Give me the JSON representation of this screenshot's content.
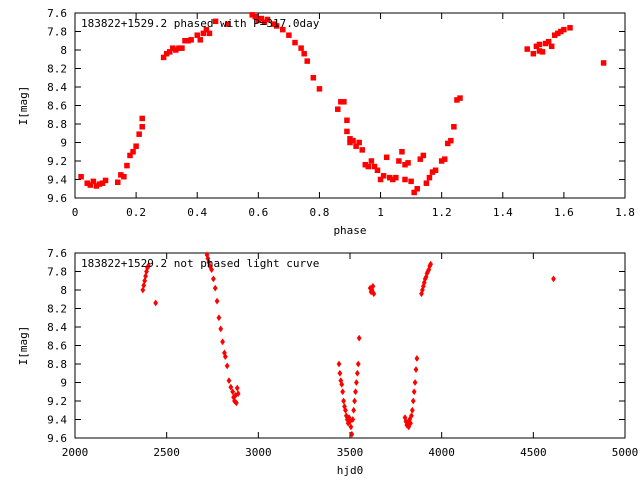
{
  "chart_data": [
    {
      "type": "scatter",
      "title": "183822+1529.2 phased with P=317.0day",
      "xlabel": "phase",
      "ylabel": "I[mag]",
      "xlim": [
        0,
        1.8
      ],
      "ylim": [
        9.6,
        7.6
      ],
      "y_inverted": true,
      "xticks": [
        "0",
        "0.2",
        "0.4",
        "0.6",
        "0.8",
        "1",
        "1.2",
        "1.4",
        "1.6",
        "1.8"
      ],
      "yticks": [
        "7.6",
        "7.8",
        "8",
        "8.2",
        "8.4",
        "8.6",
        "8.8",
        "9",
        "9.2",
        "9.4",
        "9.6"
      ],
      "grid": false,
      "marker_color": "#ff0000",
      "points": [
        [
          0.02,
          9.37
        ],
        [
          0.04,
          9.44
        ],
        [
          0.05,
          9.46
        ],
        [
          0.06,
          9.42
        ],
        [
          0.07,
          9.47
        ],
        [
          0.08,
          9.45
        ],
        [
          0.09,
          9.44
        ],
        [
          0.1,
          9.41
        ],
        [
          0.14,
          9.43
        ],
        [
          0.15,
          9.35
        ],
        [
          0.16,
          9.37
        ],
        [
          0.17,
          9.25
        ],
        [
          0.18,
          9.14
        ],
        [
          0.19,
          9.1
        ],
        [
          0.2,
          9.04
        ],
        [
          0.21,
          8.91
        ],
        [
          0.22,
          8.83
        ],
        [
          0.22,
          8.74
        ],
        [
          0.29,
          8.08
        ],
        [
          0.3,
          8.04
        ],
        [
          0.31,
          8.02
        ],
        [
          0.32,
          7.98
        ],
        [
          0.33,
          8.0
        ],
        [
          0.34,
          7.98
        ],
        [
          0.35,
          7.98
        ],
        [
          0.36,
          7.9
        ],
        [
          0.37,
          7.9
        ],
        [
          0.38,
          7.89
        ],
        [
          0.4,
          7.84
        ],
        [
          0.41,
          7.89
        ],
        [
          0.42,
          7.82
        ],
        [
          0.43,
          7.78
        ],
        [
          0.44,
          7.82
        ],
        [
          0.46,
          7.69
        ],
        [
          0.5,
          7.72
        ],
        [
          0.58,
          7.62
        ],
        [
          0.59,
          7.64
        ],
        [
          0.6,
          7.68
        ],
        [
          0.61,
          7.66
        ],
        [
          0.62,
          7.7
        ],
        [
          0.63,
          7.67
        ],
        [
          0.65,
          7.72
        ],
        [
          0.66,
          7.74
        ],
        [
          0.68,
          7.78
        ],
        [
          0.7,
          7.84
        ],
        [
          0.72,
          7.92
        ],
        [
          0.74,
          7.98
        ],
        [
          0.75,
          8.04
        ],
        [
          0.76,
          8.12
        ],
        [
          0.78,
          8.3
        ],
        [
          0.8,
          8.42
        ],
        [
          0.86,
          8.64
        ],
        [
          0.87,
          8.56
        ],
        [
          0.88,
          8.56
        ],
        [
          0.89,
          8.76
        ],
        [
          0.89,
          8.88
        ],
        [
          0.9,
          8.96
        ],
        [
          0.9,
          9.0
        ],
        [
          0.91,
          8.98
        ],
        [
          0.92,
          9.04
        ],
        [
          0.93,
          9.0
        ],
        [
          0.94,
          9.08
        ],
        [
          0.95,
          9.24
        ],
        [
          0.96,
          9.26
        ],
        [
          0.97,
          9.2
        ],
        [
          0.98,
          9.26
        ],
        [
          0.99,
          9.3
        ],
        [
          1.0,
          9.4
        ],
        [
          1.01,
          9.36
        ],
        [
          1.02,
          9.16
        ],
        [
          1.03,
          9.38
        ],
        [
          1.04,
          9.4
        ],
        [
          1.05,
          9.38
        ],
        [
          1.06,
          9.2
        ],
        [
          1.07,
          9.1
        ],
        [
          1.08,
          9.24
        ],
        [
          1.08,
          9.4
        ],
        [
          1.09,
          9.22
        ],
        [
          1.1,
          9.42
        ],
        [
          1.11,
          9.54
        ],
        [
          1.12,
          9.5
        ],
        [
          1.13,
          9.18
        ],
        [
          1.14,
          9.14
        ],
        [
          1.15,
          9.44
        ],
        [
          1.16,
          9.38
        ],
        [
          1.17,
          9.32
        ],
        [
          1.18,
          9.3
        ],
        [
          1.2,
          9.2
        ],
        [
          1.21,
          9.18
        ],
        [
          1.22,
          9.01
        ],
        [
          1.23,
          8.98
        ],
        [
          1.24,
          8.83
        ],
        [
          1.25,
          8.54
        ],
        [
          1.26,
          8.52
        ],
        [
          1.48,
          7.99
        ],
        [
          1.5,
          8.04
        ],
        [
          1.51,
          7.96
        ],
        [
          1.52,
          8.01
        ],
        [
          1.52,
          7.94
        ],
        [
          1.53,
          8.02
        ],
        [
          1.54,
          7.93
        ],
        [
          1.55,
          7.91
        ],
        [
          1.56,
          7.96
        ],
        [
          1.57,
          7.84
        ],
        [
          1.58,
          7.82
        ],
        [
          1.59,
          7.8
        ],
        [
          1.6,
          7.78
        ],
        [
          1.62,
          7.76
        ],
        [
          1.73,
          8.14
        ]
      ]
    },
    {
      "type": "scatter",
      "title": "183822+1529.2 not phased light curve",
      "xlabel": "hjd0",
      "ylabel": "I[mag]",
      "xlim": [
        2000,
        5000
      ],
      "ylim": [
        9.6,
        7.6
      ],
      "y_inverted": true,
      "xticks": [
        "2000",
        "2500",
        "3000",
        "3500",
        "4000",
        "4500",
        "5000"
      ],
      "yticks": [
        "7.6",
        "7.8",
        "8",
        "8.2",
        "8.4",
        "8.6",
        "8.8",
        "9",
        "9.2",
        "9.4",
        "9.6"
      ],
      "grid": false,
      "marker_color": "#ff0000",
      "points": [
        [
          2370,
          8.0
        ],
        [
          2375,
          7.95
        ],
        [
          2380,
          7.9
        ],
        [
          2385,
          7.85
        ],
        [
          2390,
          7.8
        ],
        [
          2395,
          7.76
        ],
        [
          2400,
          7.74
        ],
        [
          2440,
          8.14
        ],
        [
          2720,
          7.62
        ],
        [
          2725,
          7.66
        ],
        [
          2730,
          7.7
        ],
        [
          2735,
          7.74
        ],
        [
          2745,
          7.78
        ],
        [
          2755,
          7.88
        ],
        [
          2765,
          7.98
        ],
        [
          2775,
          8.12
        ],
        [
          2785,
          8.3
        ],
        [
          2795,
          8.42
        ],
        [
          2805,
          8.56
        ],
        [
          2815,
          8.68
        ],
        [
          2820,
          8.72
        ],
        [
          2830,
          8.82
        ],
        [
          2840,
          8.98
        ],
        [
          2850,
          9.05
        ],
        [
          2860,
          9.1
        ],
        [
          2865,
          9.16
        ],
        [
          2870,
          9.2
        ],
        [
          2875,
          9.14
        ],
        [
          2880,
          9.22
        ],
        [
          2885,
          9.06
        ],
        [
          2890,
          9.12
        ],
        [
          3440,
          8.8
        ],
        [
          3445,
          8.9
        ],
        [
          3450,
          8.98
        ],
        [
          3455,
          9.02
        ],
        [
          3460,
          9.1
        ],
        [
          3465,
          9.2
        ],
        [
          3470,
          9.26
        ],
        [
          3475,
          9.3
        ],
        [
          3480,
          9.36
        ],
        [
          3485,
          9.4
        ],
        [
          3490,
          9.44
        ],
        [
          3495,
          9.38
        ],
        [
          3500,
          9.42
        ],
        [
          3505,
          9.48
        ],
        [
          3510,
          9.56
        ],
        [
          3515,
          9.4
        ],
        [
          3520,
          9.3
        ],
        [
          3525,
          9.2
        ],
        [
          3530,
          9.1
        ],
        [
          3535,
          9.0
        ],
        [
          3540,
          8.9
        ],
        [
          3545,
          8.8
        ],
        [
          3550,
          8.52
        ],
        [
          3610,
          7.98
        ],
        [
          3615,
          8.02
        ],
        [
          3620,
          8.0
        ],
        [
          3625,
          7.96
        ],
        [
          3630,
          8.04
        ],
        [
          3800,
          9.38
        ],
        [
          3805,
          9.42
        ],
        [
          3810,
          9.46
        ],
        [
          3815,
          9.44
        ],
        [
          3820,
          9.48
        ],
        [
          3825,
          9.4
        ],
        [
          3830,
          9.44
        ],
        [
          3835,
          9.36
        ],
        [
          3840,
          9.3
        ],
        [
          3845,
          9.2
        ],
        [
          3850,
          9.1
        ],
        [
          3855,
          9.0
        ],
        [
          3860,
          8.86
        ],
        [
          3865,
          8.74
        ],
        [
          3890,
          8.04
        ],
        [
          3895,
          8.0
        ],
        [
          3900,
          7.96
        ],
        [
          3905,
          7.92
        ],
        [
          3910,
          7.88
        ],
        [
          3915,
          7.86
        ],
        [
          3920,
          7.82
        ],
        [
          3925,
          7.8
        ],
        [
          3930,
          7.78
        ],
        [
          3935,
          7.74
        ],
        [
          3940,
          7.72
        ],
        [
          4610,
          7.88
        ]
      ]
    }
  ]
}
